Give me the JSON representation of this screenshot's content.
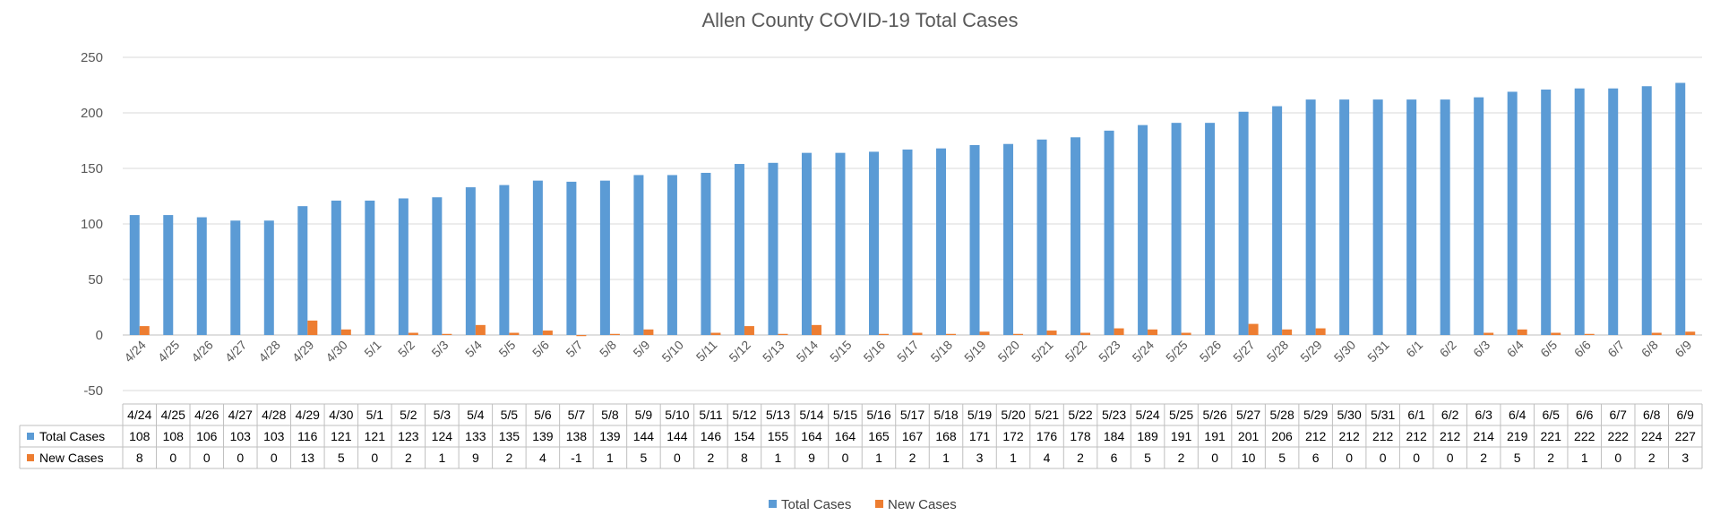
{
  "chart_data": {
    "type": "bar",
    "title": "Allen County COVID-19 Total Cases",
    "xlabel": "",
    "ylabel": "",
    "ylim": [
      -50,
      250
    ],
    "yticks": [
      -50,
      0,
      50,
      100,
      150,
      200,
      250
    ],
    "grid": true,
    "legend": "bottom",
    "data_table": true,
    "categories": [
      "4/24",
      "4/25",
      "4/26",
      "4/27",
      "4/28",
      "4/29",
      "4/30",
      "5/1",
      "5/2",
      "5/3",
      "5/4",
      "5/5",
      "5/6",
      "5/7",
      "5/8",
      "5/9",
      "5/10",
      "5/11",
      "5/12",
      "5/13",
      "5/14",
      "5/15",
      "5/16",
      "5/17",
      "5/18",
      "5/19",
      "5/20",
      "5/21",
      "5/22",
      "5/23",
      "5/24",
      "5/25",
      "5/26",
      "5/27",
      "5/28",
      "5/29",
      "5/30",
      "5/31",
      "6/1",
      "6/2",
      "6/3",
      "6/4",
      "6/5",
      "6/6",
      "6/7",
      "6/8",
      "6/9"
    ],
    "series": [
      {
        "name": "Total Cases",
        "color": "#5B9BD5",
        "values": [
          108,
          108,
          106,
          103,
          103,
          116,
          121,
          121,
          123,
          124,
          133,
          135,
          139,
          138,
          139,
          144,
          144,
          146,
          154,
          155,
          164,
          164,
          165,
          167,
          168,
          171,
          172,
          176,
          178,
          184,
          189,
          191,
          191,
          201,
          206,
          212,
          212,
          212,
          212,
          212,
          214,
          219,
          221,
          222,
          222,
          224,
          227
        ]
      },
      {
        "name": "New Cases",
        "color": "#ED7D31",
        "values": [
          8,
          0,
          0,
          0,
          0,
          13,
          5,
          0,
          2,
          1,
          9,
          2,
          4,
          -1,
          1,
          5,
          0,
          2,
          8,
          1,
          9,
          0,
          1,
          2,
          1,
          3,
          1,
          4,
          2,
          6,
          5,
          2,
          0,
          10,
          5,
          6,
          0,
          0,
          0,
          0,
          2,
          5,
          2,
          1,
          0,
          2,
          3
        ]
      }
    ]
  }
}
